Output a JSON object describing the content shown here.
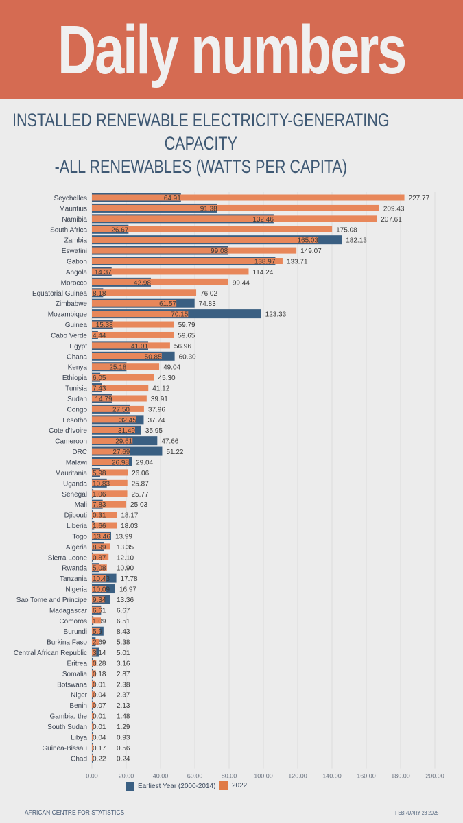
{
  "banner": {
    "title": "Daily numbers"
  },
  "subtitle": {
    "line1": "INSTALLED RENEWABLE ELECTRICITY-GENERATING CAPACITY",
    "line2": "-ALL RENEWABLES (WATTS PER CAPITA)"
  },
  "footer": {
    "left": "AFRICAN CENTRE FOR STATISTICS",
    "right": "FEBRUARY 28 2025"
  },
  "colors": {
    "banner": "#d56b52",
    "earliest": "#3a5f82",
    "y2022": "#e8875a",
    "title_text": "#3e5873"
  },
  "chart_data": {
    "type": "bar",
    "orientation": "horizontal",
    "title": "INSTALLED RENEWABLE ELECTRICITY-GENERATING CAPACITY -ALL RENEWABLES (WATTS PER CAPITA)",
    "xlabel": "",
    "ylabel": "",
    "xlim": [
      0,
      200
    ],
    "x_ticks": [
      "0.00",
      "20.00",
      "40.00",
      "60.00",
      "80.00",
      "100.00",
      "120.00",
      "140.00",
      "160.00",
      "180.00",
      "200.00"
    ],
    "grid": true,
    "legend_position": "bottom",
    "series_names": [
      "Earliest Year (2000-2014)",
      "2022"
    ],
    "categories": [
      "Seychelles",
      "Mauritius",
      "Namibia",
      "South Africa",
      "Zambia",
      "Eswatini",
      "Gabon",
      "Angola",
      "Morocco",
      "Equatorial Guinea",
      "Zimbabwe",
      "Mozambique",
      "Guinea",
      "Cabo Verde",
      "Egypt",
      "Ghana",
      "Kenya",
      "Ethiopia",
      "Tunisia",
      "Sudan",
      "Congo",
      "Lesotho",
      "Cote d'Ivoire",
      "Cameroon",
      "DRC",
      "Malawi",
      "Mauritania",
      "Uganda",
      "Senegal",
      "Mali",
      "Djibouti",
      "Liberia",
      "Togo",
      "Algeria",
      "Sierra Leone",
      "Rwanda",
      "Tanzania",
      "Nigeria",
      "Sao Tome and Principe",
      "Madagascar",
      "Comoros",
      "Burundi",
      "Burkina Faso",
      "Central African Republic",
      "Eritrea",
      "Somalia",
      "Botswana",
      "Niger",
      "Benin",
      "Gambia, the",
      "South Sudan",
      "Libya",
      "Guinea-Bissau",
      "Chad"
    ],
    "series": [
      {
        "name": "Earliest Year (2000-2014)",
        "values": [
          64.91,
          91.38,
          132.46,
          26.67,
          182.13,
          99.08,
          133.71,
          14.37,
          42.98,
          8.18,
          74.83,
          123.33,
          15.38,
          4.44,
          41.01,
          60.3,
          25.18,
          6.05,
          7.43,
          14.79,
          27.5,
          37.74,
          35.95,
          47.66,
          51.22,
          29.04,
          5.98,
          10.83,
          1.06,
          7.83,
          0.31,
          1.66,
          13.99,
          8.99,
          0.87,
          5.08,
          17.78,
          16.97,
          13.36,
          6.67,
          1.09,
          8.43,
          2.69,
          5.01,
          0.28,
          0.18,
          0.01,
          0.04,
          0.07,
          0.01,
          0.01,
          0.04,
          0.17,
          0.22
        ]
      },
      {
        "name": "2022",
        "values": [
          227.77,
          209.43,
          207.61,
          175.08,
          165.03,
          149.07,
          138.97,
          114.24,
          99.44,
          76.02,
          61.57,
          70.15,
          59.79,
          59.65,
          56.96,
          50.85,
          49.04,
          45.3,
          41.12,
          39.91,
          37.96,
          32.45,
          31.49,
          29.61,
          27.69,
          26.98,
          26.06,
          25.87,
          25.77,
          25.03,
          18.17,
          18.03,
          13.46,
          13.35,
          12.1,
          10.9,
          10.43,
          10.09,
          9.34,
          6.61,
          6.51,
          5.9,
          5.38,
          3.14,
          3.16,
          2.87,
          2.38,
          2.37,
          2.13,
          1.48,
          1.29,
          0.93,
          0.56,
          0.24
        ]
      }
    ],
    "inner_labels": [
      "64.91",
      "91.38",
      "132.46",
      "26.67",
      "165.03",
      "99.08",
      "138.97",
      "14.37",
      "42.98",
      "8.18",
      "61.57",
      "70.15",
      "15.38",
      "4.44",
      "41.01",
      "50.85",
      "25.18",
      "6.05",
      "7.43",
      "14.79",
      "27.50",
      "32.45",
      "31.49",
      "29.61",
      "27.69",
      "26.98",
      "5.98",
      "10.83",
      "1.06",
      "7.83",
      "0.31",
      "1.66",
      "13.46",
      "8.99",
      "0.87",
      "5.08",
      "10.43",
      "10.09",
      "9.34",
      "6.61",
      "1.09",
      "5.9",
      "2.69",
      "3.14",
      "0.28",
      "0.18",
      "0.01",
      "0.04",
      "0.07",
      "0.01",
      "0.01",
      "0.04",
      "0.17",
      "0.22"
    ],
    "outer_labels": [
      "227.77",
      "209.43",
      "207.61",
      "175.08",
      "182.13",
      "149.07",
      "133.71",
      "114.24",
      "99.44",
      "76.02",
      "74.83",
      "123.33",
      "59.79",
      "59.65",
      "56.96",
      "60.30",
      "49.04",
      "45.30",
      "41.12",
      "39.91",
      "37.96",
      "37.74",
      "35.95",
      "47.66",
      "51.22",
      "29.04",
      "26.06",
      "25.87",
      "25.77",
      "25.03",
      "18.17",
      "18.03",
      "13.99",
      "13.35",
      "12.10",
      "10.90",
      "17.78",
      "16.97",
      "13.36",
      "6.67",
      "6.51",
      "8.43",
      "5.38",
      "5.01",
      "3.16",
      "2.87",
      "2.38",
      "2.37",
      "2.13",
      "1.48",
      "1.29",
      "0.93",
      "0.56",
      "0.24"
    ]
  }
}
